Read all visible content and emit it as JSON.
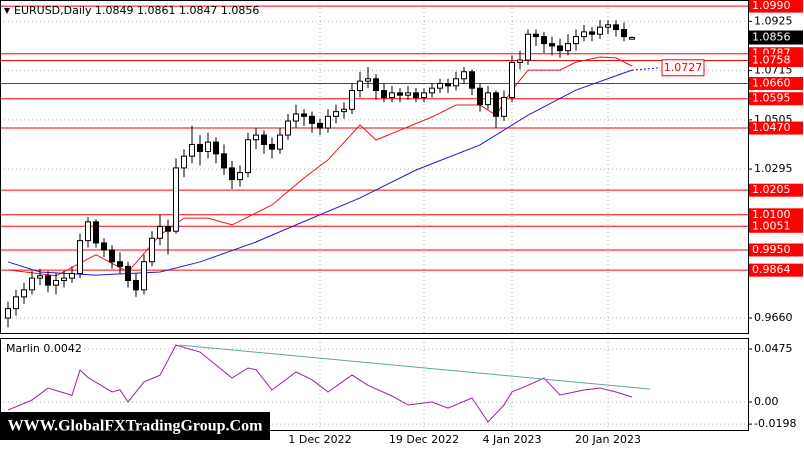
{
  "chart_data": {
    "type": "candlestick",
    "title": "EURUSD,Daily  1.0849 1.0861 1.0847 1.0856",
    "categories": [
      null,
      null,
      null,
      null,
      null,
      null,
      null,
      null,
      null,
      null,
      null,
      null,
      null,
      null,
      null,
      null,
      null,
      null,
      null,
      null,
      null,
      null,
      null,
      null,
      null,
      null,
      null,
      null,
      null,
      null,
      null,
      null,
      null,
      null,
      null,
      null,
      null,
      null,
      null,
      "1 Dec 2022",
      null,
      null,
      null,
      null,
      null,
      null,
      null,
      null,
      null,
      null,
      null,
      null,
      "19 Dec 2022",
      null,
      null,
      null,
      null,
      null,
      null,
      null,
      null,
      null,
      null,
      "4 Jan 2023",
      null,
      null,
      null,
      null,
      null,
      null,
      null,
      null,
      null,
      null,
      null,
      "20 Jan 2023",
      null,
      null,
      null
    ],
    "ohlc": [
      [
        0.966,
        0.973,
        0.962,
        0.97
      ],
      [
        0.97,
        0.978,
        0.967,
        0.975
      ],
      [
        0.975,
        0.981,
        0.972,
        0.978
      ],
      [
        0.978,
        0.986,
        0.976,
        0.983
      ],
      [
        0.983,
        0.987,
        0.98,
        0.984
      ],
      [
        0.984,
        0.986,
        0.977,
        0.98
      ],
      [
        0.98,
        0.985,
        0.976,
        0.982
      ],
      [
        0.982,
        0.986,
        0.979,
        0.983
      ],
      [
        0.983,
        0.988,
        0.981,
        0.985
      ],
      [
        0.985,
        1.002,
        0.983,
        0.999
      ],
      [
        0.999,
        1.009,
        0.996,
        1.007
      ],
      [
        1.007,
        1.008,
        0.996,
        0.998
      ],
      [
        0.998,
        1.0,
        0.992,
        0.995
      ],
      [
        0.995,
        0.997,
        0.987,
        0.99
      ],
      [
        0.99,
        0.994,
        0.985,
        0.988
      ],
      [
        0.988,
        0.99,
        0.979,
        0.982
      ],
      [
        0.982,
        0.985,
        0.975,
        0.978
      ],
      [
        0.978,
        0.993,
        0.976,
        0.99
      ],
      [
        0.99,
        1.003,
        0.988,
        1.0
      ],
      [
        1.0,
        1.01,
        0.997,
        1.005
      ],
      [
        1.005,
        1.008,
        0.993,
        1.003
      ],
      [
        1.003,
        1.034,
        1.002,
        1.03
      ],
      [
        1.03,
        1.038,
        1.026,
        1.035
      ],
      [
        1.035,
        1.048,
        1.032,
        1.04
      ],
      [
        1.04,
        1.044,
        1.031,
        1.037
      ],
      [
        1.037,
        1.045,
        1.034,
        1.041
      ],
      [
        1.041,
        1.043,
        1.032,
        1.036
      ],
      [
        1.036,
        1.04,
        1.027,
        1.03
      ],
      [
        1.03,
        1.033,
        1.021,
        1.025
      ],
      [
        1.025,
        1.031,
        1.022,
        1.028
      ],
      [
        1.028,
        1.045,
        1.026,
        1.042
      ],
      [
        1.042,
        1.047,
        1.038,
        1.044
      ],
      [
        1.044,
        1.046,
        1.036,
        1.04
      ],
      [
        1.04,
        1.043,
        1.034,
        1.038
      ],
      [
        1.038,
        1.047,
        1.036,
        1.044
      ],
      [
        1.044,
        1.053,
        1.042,
        1.05
      ],
      [
        1.05,
        1.057,
        1.047,
        1.053
      ],
      [
        1.053,
        1.055,
        1.048,
        1.052
      ],
      [
        1.052,
        1.054,
        1.045,
        1.049
      ],
      [
        1.049,
        1.051,
        1.044,
        1.047
      ],
      [
        1.047,
        1.055,
        1.045,
        1.052
      ],
      [
        1.052,
        1.057,
        1.049,
        1.054
      ],
      [
        1.054,
        1.058,
        1.051,
        1.055
      ],
      [
        1.055,
        1.066,
        1.053,
        1.063
      ],
      [
        1.063,
        1.071,
        1.06,
        1.067
      ],
      [
        1.067,
        1.073,
        1.064,
        1.068
      ],
      [
        1.068,
        1.07,
        1.059,
        1.063
      ],
      [
        1.063,
        1.066,
        1.058,
        1.06
      ],
      [
        1.06,
        1.065,
        1.058,
        1.062
      ],
      [
        1.062,
        1.064,
        1.058,
        1.061
      ],
      [
        1.061,
        1.065,
        1.059,
        1.062
      ],
      [
        1.062,
        1.064,
        1.058,
        1.06
      ],
      [
        1.06,
        1.064,
        1.058,
        1.062
      ],
      [
        1.062,
        1.066,
        1.06,
        1.064
      ],
      [
        1.064,
        1.068,
        1.062,
        1.066
      ],
      [
        1.066,
        1.068,
        1.062,
        1.065
      ],
      [
        1.065,
        1.071,
        1.063,
        1.068
      ],
      [
        1.068,
        1.073,
        1.066,
        1.071
      ],
      [
        1.071,
        1.072,
        1.061,
        1.064
      ],
      [
        1.064,
        1.066,
        1.054,
        1.057
      ],
      [
        1.057,
        1.065,
        1.055,
        1.062
      ],
      [
        1.062,
        1.063,
        1.047,
        1.052
      ],
      [
        1.052,
        1.063,
        1.05,
        1.06
      ],
      [
        1.06,
        1.078,
        1.058,
        1.075
      ],
      [
        1.075,
        1.08,
        1.072,
        1.076
      ],
      [
        1.076,
        1.089,
        1.074,
        1.087
      ],
      [
        1.087,
        1.089,
        1.082,
        1.086
      ],
      [
        1.086,
        1.088,
        1.079,
        1.083
      ],
      [
        1.083,
        1.086,
        1.078,
        1.082
      ],
      [
        1.082,
        1.085,
        1.077,
        1.08
      ],
      [
        1.08,
        1.087,
        1.078,
        1.083
      ],
      [
        1.083,
        1.089,
        1.08,
        1.086
      ],
      [
        1.086,
        1.091,
        1.084,
        1.088
      ],
      [
        1.088,
        1.09,
        1.084,
        1.087
      ],
      [
        1.087,
        1.093,
        1.085,
        1.09
      ],
      [
        1.09,
        1.093,
        1.087,
        1.091
      ],
      [
        1.091,
        1.093,
        1.086,
        1.089
      ],
      [
        1.089,
        1.092,
        1.084,
        1.086
      ],
      [
        1.0849,
        1.0861,
        1.0847,
        1.0856
      ]
    ],
    "up_color": "#ffffff",
    "down_color": "#000000",
    "ylim": [
      0.9596,
      1.1016
    ],
    "yticks": [
      1.0925,
      1.0715,
      1.0505,
      1.0295,
      {
        "value": 0.966,
        "label": "0.9660"
      }
    ],
    "grid": true,
    "levels": {
      "color": "#ff0000",
      "values": [
        {
          "value": 1.099,
          "label": "1.0990"
        },
        1.0787,
        1.0758,
        {
          "value": 1.066,
          "label": "1.0660"
        },
        1.0595,
        {
          "value": 1.047,
          "label": "1.0470"
        },
        1.0205,
        {
          "value": 1.01,
          "label": "1.0100"
        },
        1.0051,
        {
          "value": 0.995,
          "label": "0.9950"
        },
        0.9864
      ]
    },
    "last_price": 1.0856,
    "lines": [
      {
        "color": "#e8151b",
        "x": [
          0,
          6,
          11,
          15,
          19,
          22,
          25,
          28,
          33,
          37,
          40,
          44,
          46,
          49,
          53,
          56,
          59,
          61,
          63,
          65,
          69,
          71,
          74,
          76,
          78
        ],
        "values": [
          0.9865,
          0.984,
          0.993,
          0.9856,
          1.0014,
          1.0086,
          1.0086,
          1.0057,
          1.0142,
          1.0257,
          1.0334,
          1.0483,
          1.0419,
          1.0461,
          1.0517,
          1.0568,
          1.0568,
          1.0525,
          1.0632,
          1.0717,
          1.0717,
          1.0751,
          1.0773,
          1.0769,
          1.0734
        ]
      },
      {
        "color": "#1c1cc8",
        "x": [
          0,
          4,
          11,
          19,
          24,
          31,
          36,
          44,
          51,
          59,
          65,
          71,
          78
        ],
        "values": [
          0.9899,
          0.9856,
          0.9843,
          0.9856,
          0.9899,
          0.9984,
          1.0057,
          1.0172,
          1.0291,
          1.0398,
          1.0525,
          1.0632,
          1.0717
        ]
      }
    ],
    "ma_label": 1.0727,
    "watermark": "WWW.GlobalFXTradingGroup.Com",
    "indicator": {
      "type": "line",
      "label": "Marlin 0.0042",
      "color": "#a01ea0",
      "x": [
        0,
        3,
        5,
        8,
        9,
        10,
        13,
        14,
        15,
        17,
        19,
        20,
        21,
        24,
        25,
        28,
        30,
        31,
        33,
        36,
        38,
        40,
        43,
        45,
        48,
        50,
        53,
        55,
        58,
        60,
        62,
        63,
        65,
        67,
        69,
        72,
        74,
        76,
        78
      ],
      "values": [
        -0.0072,
        0.0018,
        0.0125,
        0.006,
        0.0287,
        0.022,
        0.009,
        0.011,
        0.0,
        0.018,
        0.024,
        0.0376,
        0.051,
        0.0448,
        0.039,
        0.0215,
        0.0305,
        0.029,
        0.0108,
        0.0269,
        0.02,
        0.009,
        0.0242,
        0.015,
        0.0054,
        -0.0027,
        0.0,
        -0.0054,
        0.0036,
        -0.0179,
        -0.0027,
        0.009,
        0.015,
        0.0215,
        0.0063,
        0.0108,
        0.0125,
        0.009,
        0.0045
      ],
      "ylim": [
        -0.0251,
        0.0574
      ],
      "yticks": [
        0.0475,
        {
          "value": 0,
          "label": "0.00"
        },
        -0.0198
      ],
      "trendline": {
        "color": "#5fa8a0",
        "x": [
          21.5,
          80.25
        ],
        "values": [
          0.051,
          0.0116
        ]
      }
    }
  }
}
